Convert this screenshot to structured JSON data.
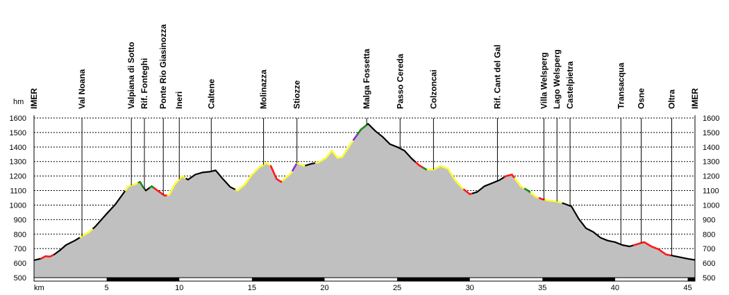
{
  "chart_data": {
    "type": "area",
    "title": "",
    "xlabel": "km",
    "ylabel": "hm",
    "xlim": [
      0,
      45.5
    ],
    "ylim": [
      500,
      1600
    ],
    "x_ticks": [
      5,
      10,
      15,
      20,
      25,
      30,
      35,
      40,
      45
    ],
    "y_ticks": [
      500,
      600,
      700,
      800,
      900,
      1000,
      1100,
      1200,
      1300,
      1400,
      1500,
      1600
    ],
    "grid": "dotted horizontal",
    "fill_color": "#c0c0c0",
    "line_color": "#000000",
    "segment_colors": {
      "yellow": "#ffff33",
      "red": "#ff1a1a",
      "green": "#1a8a1a",
      "purple": "#8a2be2"
    },
    "profile": [
      [
        0,
        620
      ],
      [
        0.5,
        632
      ],
      [
        0.8,
        648
      ],
      [
        1.1,
        645
      ],
      [
        1.4,
        660
      ],
      [
        1.8,
        690
      ],
      [
        2.2,
        725
      ],
      [
        2.8,
        755
      ],
      [
        3.3,
        785
      ],
      [
        3.8,
        815
      ],
      [
        4.2,
        850
      ],
      [
        5.0,
        940
      ],
      [
        5.6,
        1005
      ],
      [
        6.0,
        1060
      ],
      [
        6.5,
        1130
      ],
      [
        7.0,
        1145
      ],
      [
        7.3,
        1160
      ],
      [
        7.5,
        1125
      ],
      [
        7.7,
        1100
      ],
      [
        8.1,
        1130
      ],
      [
        8.5,
        1100
      ],
      [
        9.0,
        1065
      ],
      [
        9.3,
        1070
      ],
      [
        9.7,
        1145
      ],
      [
        10.2,
        1200
      ],
      [
        10.6,
        1175
      ],
      [
        11.1,
        1210
      ],
      [
        11.6,
        1225
      ],
      [
        12.1,
        1230
      ],
      [
        12.5,
        1240
      ],
      [
        13.0,
        1180
      ],
      [
        13.5,
        1125
      ],
      [
        14.0,
        1100
      ],
      [
        14.5,
        1140
      ],
      [
        15.0,
        1210
      ],
      [
        15.5,
        1260
      ],
      [
        16.0,
        1290
      ],
      [
        16.3,
        1270
      ],
      [
        16.7,
        1180
      ],
      [
        17.0,
        1160
      ],
      [
        17.3,
        1185
      ],
      [
        17.7,
        1220
      ],
      [
        18.1,
        1290
      ],
      [
        18.6,
        1270
      ],
      [
        19.1,
        1285
      ],
      [
        19.6,
        1295
      ],
      [
        20.1,
        1325
      ],
      [
        20.5,
        1375
      ],
      [
        20.9,
        1325
      ],
      [
        21.2,
        1330
      ],
      [
        21.6,
        1390
      ],
      [
        22.0,
        1450
      ],
      [
        22.5,
        1520
      ],
      [
        23.0,
        1560
      ],
      [
        23.5,
        1510
      ],
      [
        24.0,
        1470
      ],
      [
        24.5,
        1420
      ],
      [
        25.0,
        1400
      ],
      [
        25.5,
        1375
      ],
      [
        26.0,
        1320
      ],
      [
        26.5,
        1275
      ],
      [
        27.0,
        1245
      ],
      [
        27.5,
        1245
      ],
      [
        28.0,
        1270
      ],
      [
        28.5,
        1250
      ],
      [
        29.0,
        1170
      ],
      [
        29.5,
        1115
      ],
      [
        30.0,
        1075
      ],
      [
        30.5,
        1090
      ],
      [
        31.0,
        1130
      ],
      [
        31.5,
        1150
      ],
      [
        32.0,
        1170
      ],
      [
        32.5,
        1200
      ],
      [
        32.9,
        1210
      ],
      [
        33.5,
        1130
      ],
      [
        34.0,
        1100
      ],
      [
        34.5,
        1060
      ],
      [
        35.0,
        1040
      ],
      [
        35.5,
        1030
      ],
      [
        36.0,
        1025
      ],
      [
        36.5,
        1010
      ],
      [
        37.0,
        990
      ],
      [
        37.5,
        905
      ],
      [
        38.0,
        840
      ],
      [
        38.5,
        815
      ],
      [
        39.0,
        775
      ],
      [
        39.5,
        755
      ],
      [
        40.0,
        745
      ],
      [
        40.5,
        725
      ],
      [
        41.0,
        715
      ],
      [
        41.5,
        730
      ],
      [
        42.0,
        745
      ],
      [
        42.5,
        715
      ],
      [
        43.0,
        695
      ],
      [
        43.5,
        660
      ],
      [
        44.0,
        650
      ],
      [
        44.5,
        640
      ],
      [
        45.0,
        630
      ],
      [
        45.5,
        622
      ]
    ],
    "colored_segments": [
      {
        "color": "red",
        "from": 0.5,
        "to": 1.3
      },
      {
        "color": "yellow",
        "from": 3.2,
        "to": 4.0
      },
      {
        "color": "yellow",
        "from": 6.3,
        "to": 7.2
      },
      {
        "color": "green",
        "from": 7.2,
        "to": 7.6
      },
      {
        "color": "green",
        "from": 8.0,
        "to": 8.3
      },
      {
        "color": "red",
        "from": 8.3,
        "to": 9.2
      },
      {
        "color": "yellow",
        "from": 9.2,
        "to": 10.4
      },
      {
        "color": "yellow",
        "from": 13.9,
        "to": 16.3
      },
      {
        "color": "red",
        "from": 16.3,
        "to": 17.1
      },
      {
        "color": "yellow",
        "from": 17.1,
        "to": 17.8
      },
      {
        "color": "purple",
        "from": 17.8,
        "to": 18.1
      },
      {
        "color": "yellow",
        "from": 18.1,
        "to": 18.6
      },
      {
        "color": "yellow",
        "from": 19.4,
        "to": 22.0
      },
      {
        "color": "purple",
        "from": 22.0,
        "to": 22.3
      },
      {
        "color": "green",
        "from": 22.3,
        "to": 22.9
      },
      {
        "color": "red",
        "from": 26.3,
        "to": 26.8
      },
      {
        "color": "green",
        "from": 26.8,
        "to": 27.1
      },
      {
        "color": "yellow",
        "from": 27.1,
        "to": 29.6
      },
      {
        "color": "red",
        "from": 29.6,
        "to": 30.1
      },
      {
        "color": "red",
        "from": 32.4,
        "to": 33.1
      },
      {
        "color": "yellow",
        "from": 33.1,
        "to": 33.8
      },
      {
        "color": "green",
        "from": 33.8,
        "to": 34.2
      },
      {
        "color": "yellow",
        "from": 34.2,
        "to": 34.8
      },
      {
        "color": "red",
        "from": 34.8,
        "to": 35.2
      },
      {
        "color": "yellow",
        "from": 35.2,
        "to": 36.3
      },
      {
        "color": "red",
        "from": 41.3,
        "to": 43.8
      }
    ],
    "waypoints": [
      {
        "label": "IMER",
        "km": 0
      },
      {
        "label": "Val Noana",
        "km": 3.3
      },
      {
        "label": "Valpiana di Sotto",
        "km": 6.7
      },
      {
        "label": "Rif. Fonteghi",
        "km": 7.6
      },
      {
        "label": "Ponte Rio Giasinozza",
        "km": 8.9
      },
      {
        "label": "Ineri",
        "km": 10.0
      },
      {
        "label": "Caltene",
        "km": 12.2
      },
      {
        "label": "Molinazza",
        "km": 15.8
      },
      {
        "label": "Stiozze",
        "km": 18.1
      },
      {
        "label": "Malga Fossetta",
        "km": 22.9
      },
      {
        "label": "Passo Cereda",
        "km": 25.2
      },
      {
        "label": "Colzoncai",
        "km": 27.5
      },
      {
        "label": "Rif. Cant del Gal",
        "km": 31.9
      },
      {
        "label": "Villa Welsperg",
        "km": 35.1
      },
      {
        "label": "Lago Welsperg",
        "km": 36.0
      },
      {
        "label": "Castelpietra",
        "km": 36.9
      },
      {
        "label": "Transacqua",
        "km": 40.4
      },
      {
        "label": "Osne",
        "km": 41.8
      },
      {
        "label": "Oltra",
        "km": 43.9
      },
      {
        "label": "IMER",
        "km": 45.5
      }
    ]
  }
}
